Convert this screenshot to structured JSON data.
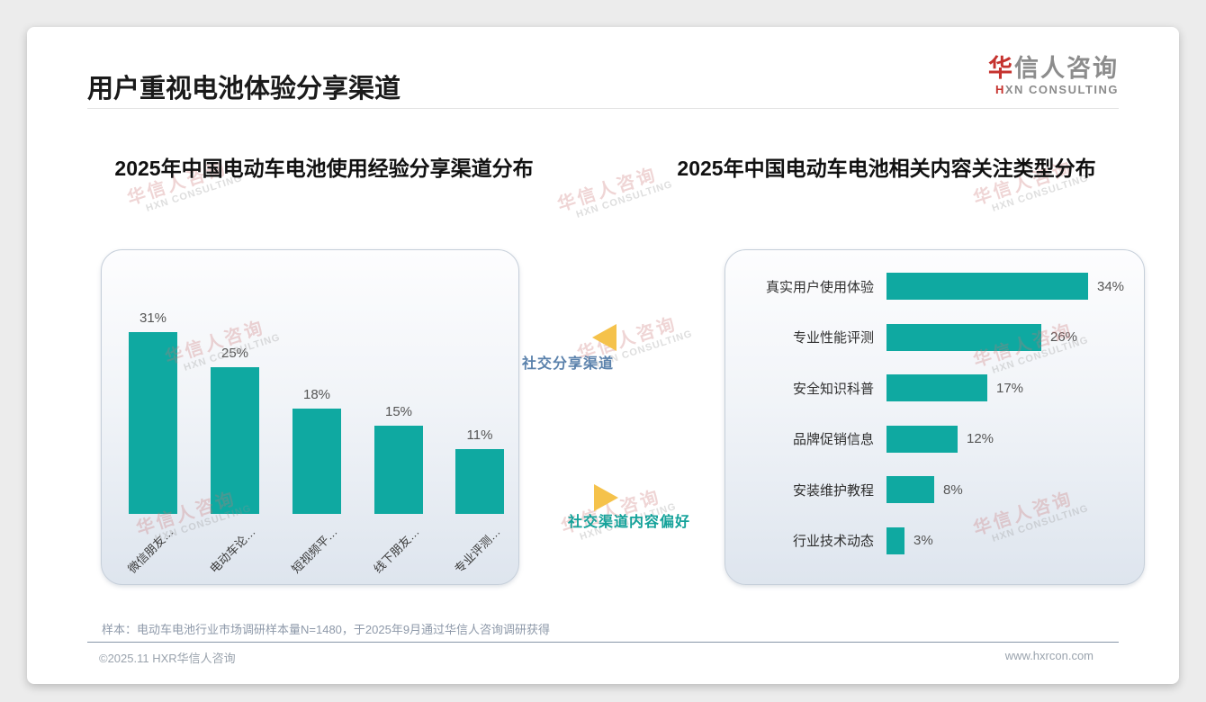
{
  "page": {
    "title": "用户重视电池体验分享渠道",
    "footnote": "样本：电动车电池行业市场调研样本量N=1480，于2025年9月通过华信人咨询调研获得",
    "copyright": "©2025.11 HXR华信人咨询",
    "website": "www.hxrcon.com"
  },
  "logo": {
    "zh_accent": "华",
    "zh_rest": "信人咨询",
    "en_accent": "H",
    "en_rest": "XN CONSULTING"
  },
  "watermark": {
    "line1": "华信人咨询",
    "line2": "HXN CONSULTING"
  },
  "annotations": {
    "social_share_label": "社交分享渠道",
    "content_pref_label": "社交渠道内容偏好"
  },
  "colors": {
    "teal_bar": "#0fa9a1",
    "arrow_yellow": "#f5c24b",
    "blue_label": "#5b82ac",
    "teal_label": "#14a29a",
    "logo_red": "#c5322e"
  },
  "chart_data": [
    {
      "type": "bar",
      "orientation": "vertical",
      "title": "2025年中国电动车电池使用经验分享渠道分布",
      "categories": [
        "微信朋友…",
        "电动车论…",
        "短视频平…",
        "线下朋友…",
        "专业评测…"
      ],
      "values": [
        31,
        25,
        18,
        15,
        11
      ],
      "unit": "%",
      "bar_color": "#0fa9a1",
      "data_labels": "outside-end",
      "grid": false,
      "axis_visible": false
    },
    {
      "type": "bar",
      "orientation": "horizontal",
      "title": "2025年中国电动车电池相关内容关注类型分布",
      "categories": [
        "真实用户使用体验",
        "专业性能评测",
        "安全知识科普",
        "品牌促销信息",
        "安装维护教程",
        "行业技术动态"
      ],
      "values": [
        34,
        26,
        17,
        12,
        8,
        3
      ],
      "unit": "%",
      "bar_color": "#0fa9a1",
      "data_labels": "outside-end",
      "grid": false,
      "axis_visible": false
    }
  ]
}
